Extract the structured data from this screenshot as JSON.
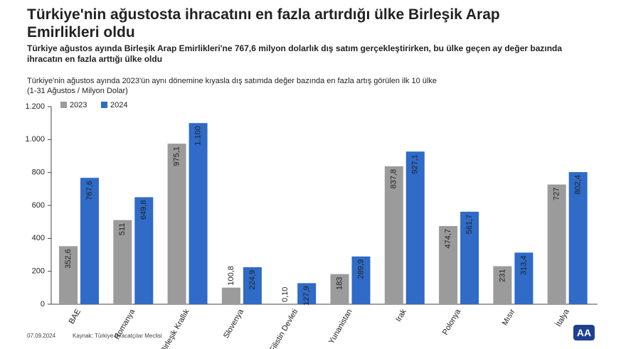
{
  "chart_data": {
    "type": "bar",
    "title": "Türkiye'nin ağustosta ihracatını en fazla artırdığı ülke Birleşik Arap Emirlikleri oldu",
    "subtitle": "Türkiye ağustos ayında Birleşik Arap Emirlikleri'ne 767,6 milyon dolarlık dış satım gerçekleştirirken, bu ülke geçen ay değer bazında ihracatın en fazla arttığı ülke oldu",
    "note": "Türkiye'nin ağustos ayında 2023'ün aynı dönemine kıyasla dış satımda değer bazında en fazla artış görülen ilk 10 ülke",
    "unit_label": "(1-31 Ağustos / Milyon Dolar)",
    "date": "07.09.2024",
    "source": "Kaynak: Türkiye İhracatçılar Meclisi",
    "logo_text": "AA",
    "categories": [
      "BAE",
      "Romanya",
      "Birleşik Krallık",
      "Slovenya",
      "Filistin Devleti",
      "Yunanistan",
      "Irak",
      "Polonya",
      "Mısır",
      "İtalya"
    ],
    "series": [
      {
        "name": "2023",
        "color": "#9b9b9b",
        "values": [
          352.6,
          511,
          975.1,
          100.8,
          0.1,
          183,
          837.8,
          474.7,
          231,
          727
        ],
        "value_labels": [
          "352,6",
          "511",
          "975,1",
          "100,8",
          "0,10",
          "183",
          "837,8",
          "474,7",
          "231",
          "727"
        ]
      },
      {
        "name": "2024",
        "color": "#2f6bc7",
        "values": [
          767.6,
          649.8,
          1100,
          224.9,
          127.9,
          289.9,
          927.1,
          561.7,
          313.4,
          802.4
        ],
        "value_labels": [
          "767,6",
          "649,8",
          "1.100",
          "224,9",
          "127,9",
          "289,9",
          "927,1",
          "561,7",
          "313,4",
          "802,4"
        ]
      }
    ],
    "ylim": [
      0,
      1200
    ],
    "yticks": [
      0,
      200,
      400,
      600,
      800,
      {
        "value": 1000,
        "label": "1.000"
      },
      {
        "value": 1200,
        "label": "1.200"
      }
    ],
    "grid": false,
    "legend": "top-left"
  }
}
